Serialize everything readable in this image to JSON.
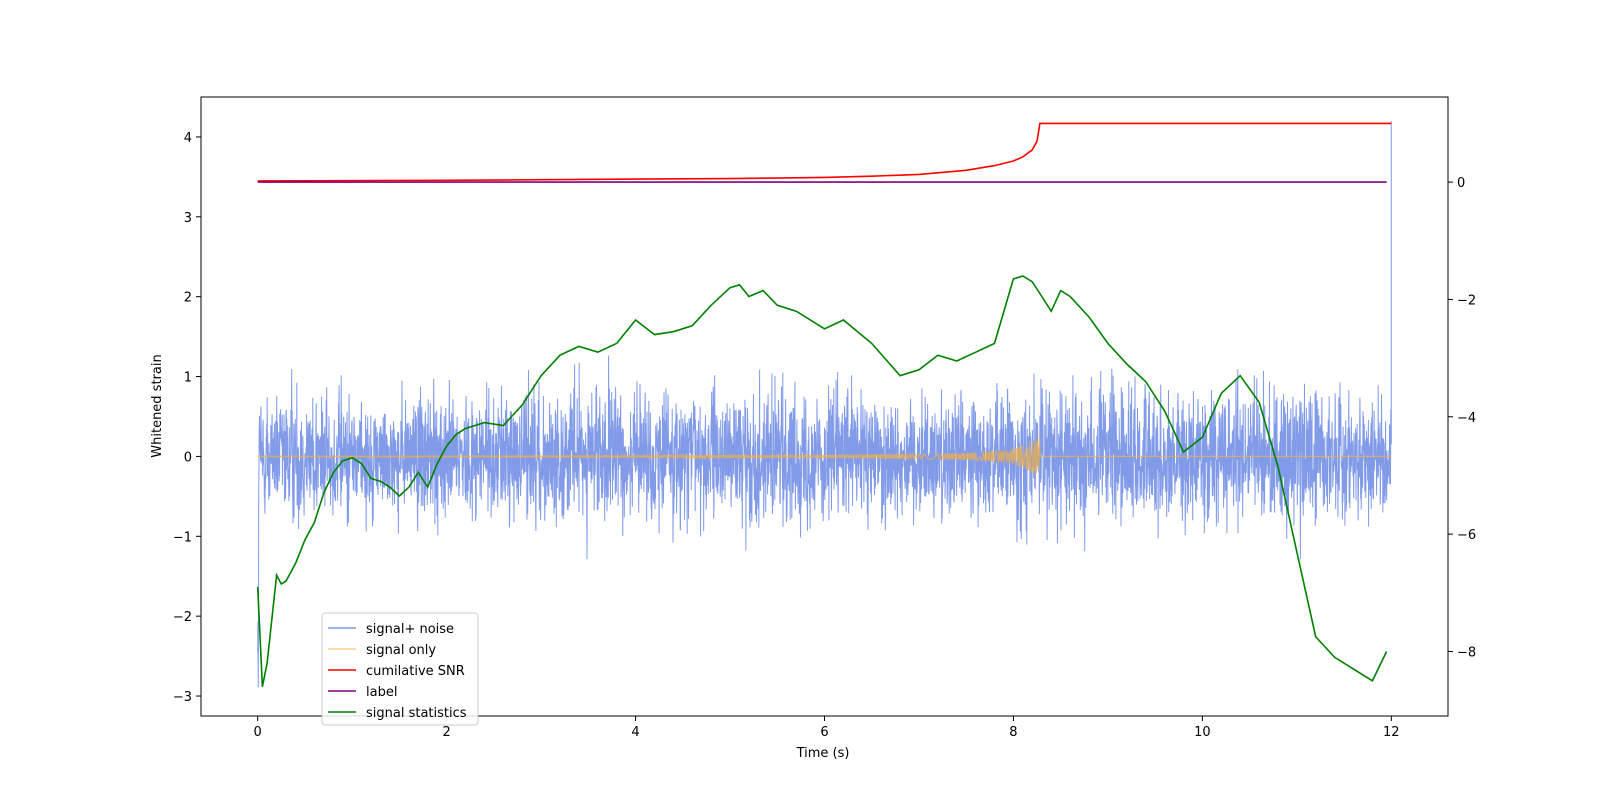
{
  "chart_data": {
    "type": "line",
    "title": "",
    "xlabel": "Time (s)",
    "ylabel": "Whitened strain",
    "y2label": "",
    "xlim": [
      -0.6,
      12.6
    ],
    "ylim": [
      -3.25,
      4.5
    ],
    "y2lim": [
      -9.1,
      1.45
    ],
    "xticks": [
      "0",
      "2",
      "4",
      "6",
      "8",
      "10",
      "12"
    ],
    "yticks": [
      "−3",
      "−2",
      "−1",
      "0",
      "1",
      "2",
      "3",
      "4"
    ],
    "y2ticks": [
      "−8",
      "−6",
      "−4",
      "−2",
      "0"
    ],
    "legend_position": "lower-left",
    "series": [
      {
        "name": "signal+ noise",
        "axis": "left",
        "color": "#7a96e8",
        "description": "dense noisy whitened strain, amplitude roughly ±1.5 with excursions to ±2.4; spike to ~4.2 at t=12",
        "noise_amplitude": 0.55,
        "peak": 4.2
      },
      {
        "name": "signal only",
        "axis": "left",
        "color": "#f5b041",
        "description": "chirp growing until merger",
        "x": [
          0,
          4,
          6,
          7,
          7.5,
          7.8,
          8.0,
          8.1,
          8.2,
          8.28
        ],
        "envelope": [
          0.005,
          0.01,
          0.02,
          0.03,
          0.045,
          0.07,
          0.1,
          0.14,
          0.2,
          0.3
        ]
      },
      {
        "name": "cumilative SNR",
        "axis": "right",
        "color": "#ff0000",
        "x": [
          0,
          2,
          4,
          5,
          6,
          6.5,
          7,
          7.5,
          7.8,
          8.0,
          8.1,
          8.2,
          8.25,
          8.28,
          8.3,
          12
        ],
        "values": [
          0.02,
          0.03,
          0.05,
          0.06,
          0.08,
          0.1,
          0.13,
          0.2,
          0.28,
          0.36,
          0.43,
          0.55,
          0.7,
          1.0,
          1.0,
          1.0
        ]
      },
      {
        "name": "label",
        "axis": "right",
        "color": "#800080",
        "x": [
          0,
          11.95
        ],
        "values": [
          0,
          0
        ]
      },
      {
        "name": "signal statistics",
        "axis": "right",
        "color": "#008000",
        "x": [
          0,
          0.05,
          0.1,
          0.2,
          0.25,
          0.3,
          0.4,
          0.5,
          0.6,
          0.7,
          0.8,
          0.9,
          1.0,
          1.1,
          1.2,
          1.3,
          1.4,
          1.5,
          1.6,
          1.7,
          1.8,
          1.9,
          2.0,
          2.1,
          2.2,
          2.4,
          2.6,
          2.8,
          3.0,
          3.2,
          3.4,
          3.6,
          3.8,
          4.0,
          4.2,
          4.4,
          4.6,
          4.8,
          5.0,
          5.1,
          5.2,
          5.35,
          5.5,
          5.7,
          6.0,
          6.2,
          6.5,
          6.8,
          7.0,
          7.2,
          7.4,
          7.6,
          7.8,
          8.0,
          8.1,
          8.2,
          8.3,
          8.4,
          8.5,
          8.6,
          8.8,
          9.0,
          9.2,
          9.4,
          9.6,
          9.8,
          10.0,
          10.2,
          10.4,
          10.6,
          10.8,
          11.0,
          11.2,
          11.4,
          11.6,
          11.8,
          11.95
        ],
        "values": [
          -6.9,
          -8.6,
          -8.2,
          -6.7,
          -6.85,
          -6.8,
          -6.5,
          -6.1,
          -5.8,
          -5.3,
          -4.95,
          -4.75,
          -4.7,
          -4.8,
          -5.05,
          -5.1,
          -5.2,
          -5.35,
          -5.2,
          -4.95,
          -5.2,
          -4.8,
          -4.5,
          -4.3,
          -4.2,
          -4.1,
          -4.15,
          -3.8,
          -3.3,
          -2.95,
          -2.8,
          -2.9,
          -2.75,
          -2.35,
          -2.6,
          -2.55,
          -2.45,
          -2.1,
          -1.8,
          -1.75,
          -1.95,
          -1.85,
          -2.1,
          -2.2,
          -2.5,
          -2.35,
          -2.75,
          -3.3,
          -3.2,
          -2.95,
          -3.05,
          -2.9,
          -2.75,
          -1.65,
          -1.6,
          -1.7,
          -1.95,
          -2.2,
          -1.85,
          -1.95,
          -2.3,
          -2.75,
          -3.1,
          -3.4,
          -3.9,
          -4.6,
          -4.35,
          -3.6,
          -3.3,
          -3.75,
          -4.85,
          -6.3,
          -7.75,
          -8.1,
          -8.3,
          -8.5,
          -8.0
        ]
      }
    ]
  }
}
